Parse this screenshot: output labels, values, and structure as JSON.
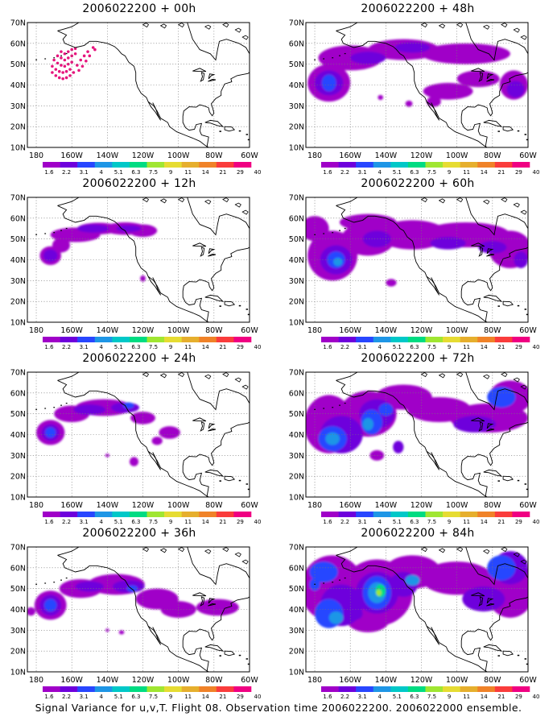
{
  "lat_ticks": [
    "70N",
    "60N",
    "50N",
    "40N",
    "30N",
    "20N",
    "10N"
  ],
  "lon_ticks": [
    "180",
    "160W",
    "140W",
    "120W",
    "100W",
    "80W",
    "60W"
  ],
  "scale": {
    "labels": [
      "1.6",
      "2.2",
      "3.1",
      "4",
      "5.1",
      "6.3",
      "7.5",
      "9",
      "11",
      "14",
      "21",
      "29",
      "40"
    ],
    "colors": [
      "#a000c8",
      "#6e00dc",
      "#2846ff",
      "#1e96e6",
      "#00c8c8",
      "#00dc82",
      "#a0e632",
      "#e6dc32",
      "#e6af2d",
      "#f08228",
      "#fa3c3c",
      "#f00082"
    ]
  },
  "fill_colors": {
    "low": "#a000c8",
    "mid": "#6e00dc",
    "high": "#2846ff",
    "very_high": "#1e96e6",
    "peak": "#00dc82",
    "extreme": "#a0e632"
  },
  "panels": [
    {
      "title": "2006022200 + 00h",
      "level": 0
    },
    {
      "title": "2006022200 + 48h",
      "level": 4
    },
    {
      "title": "2006022200 + 12h",
      "level": 1
    },
    {
      "title": "2006022200 + 60h",
      "level": 5
    },
    {
      "title": "2006022200 + 24h",
      "level": 2
    },
    {
      "title": "2006022200 + 72h",
      "level": 6
    },
    {
      "title": "2006022200 + 36h",
      "level": 3
    },
    {
      "title": "2006022200 + 84h",
      "level": 7
    }
  ],
  "footer": "Signal Variance for u,v,T. Flight 08. Observation time 2006022200. 2006022000 ensemble."
}
